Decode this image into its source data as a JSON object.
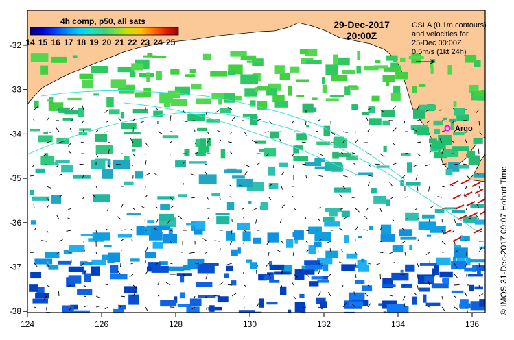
{
  "map": {
    "date_line1": "29-Dec-2017",
    "date_line2": "20:00Z",
    "colorbar": {
      "title": "4h comp, p50, all sats",
      "ticks": [
        "14",
        "15",
        "16",
        "17",
        "18",
        "19",
        "20",
        "21",
        "22",
        "23",
        "24",
        "25"
      ],
      "colors": [
        "#000080",
        "#0000d0",
        "#0040ff",
        "#0090ff",
        "#00d0ff",
        "#20e0c0",
        "#40d080",
        "#80e040",
        "#d0e000",
        "#ffc000",
        "#ff7000",
        "#e02000",
        "#a00000"
      ]
    },
    "info": {
      "line1": "GSLA (0.1m contours)",
      "line2": "and velocities for",
      "line3": "25-Dec 00:00Z",
      "line4": "0.5m/s (1kt 24h)"
    },
    "argo_label": "Argo",
    "credit": "© IMOS 31-Dec-2017 09:07 Hobart Time",
    "x_ticks": [
      "124",
      "126",
      "128",
      "130",
      "132",
      "134",
      "136"
    ],
    "y_ticks": [
      "-32",
      "-33",
      "-34",
      "-35",
      "-36",
      "-37",
      "-38"
    ],
    "colors": {
      "land": "#fbc898",
      "frame": "#000000",
      "contour": "#40e0e0",
      "argo": "#ff00ff",
      "velocity_red": "#e00000"
    }
  }
}
